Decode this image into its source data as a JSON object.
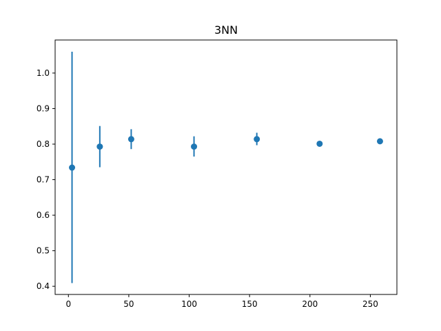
{
  "chart_data": {
    "type": "scatter",
    "title": "3NN",
    "xlabel": "",
    "ylabel": "",
    "xlim": [
      -11,
      272
    ],
    "ylim": [
      0.377,
      1.093
    ],
    "x_ticks": [
      0,
      50,
      100,
      150,
      200,
      250
    ],
    "y_ticks": [
      0.4,
      0.5,
      0.6,
      0.7,
      0.8,
      0.9,
      1.0
    ],
    "grid": false,
    "legend": "none",
    "marker_color": "#1f77b4",
    "series": [
      {
        "points": [
          {
            "x": 3,
            "y": 0.734,
            "err_low": 0.409,
            "err_high": 1.06
          },
          {
            "x": 26,
            "y": 0.793,
            "err_low": 0.735,
            "err_high": 0.851
          },
          {
            "x": 52,
            "y": 0.814,
            "err_low": 0.786,
            "err_high": 0.842
          },
          {
            "x": 104,
            "y": 0.793,
            "err_low": 0.765,
            "err_high": 0.822
          },
          {
            "x": 156,
            "y": 0.814,
            "err_low": 0.797,
            "err_high": 0.832
          },
          {
            "x": 208,
            "y": 0.801,
            "err_low": 0.797,
            "err_high": 0.805
          },
          {
            "x": 258,
            "y": 0.808,
            "err_low": 0.806,
            "err_high": 0.81
          }
        ]
      }
    ]
  }
}
